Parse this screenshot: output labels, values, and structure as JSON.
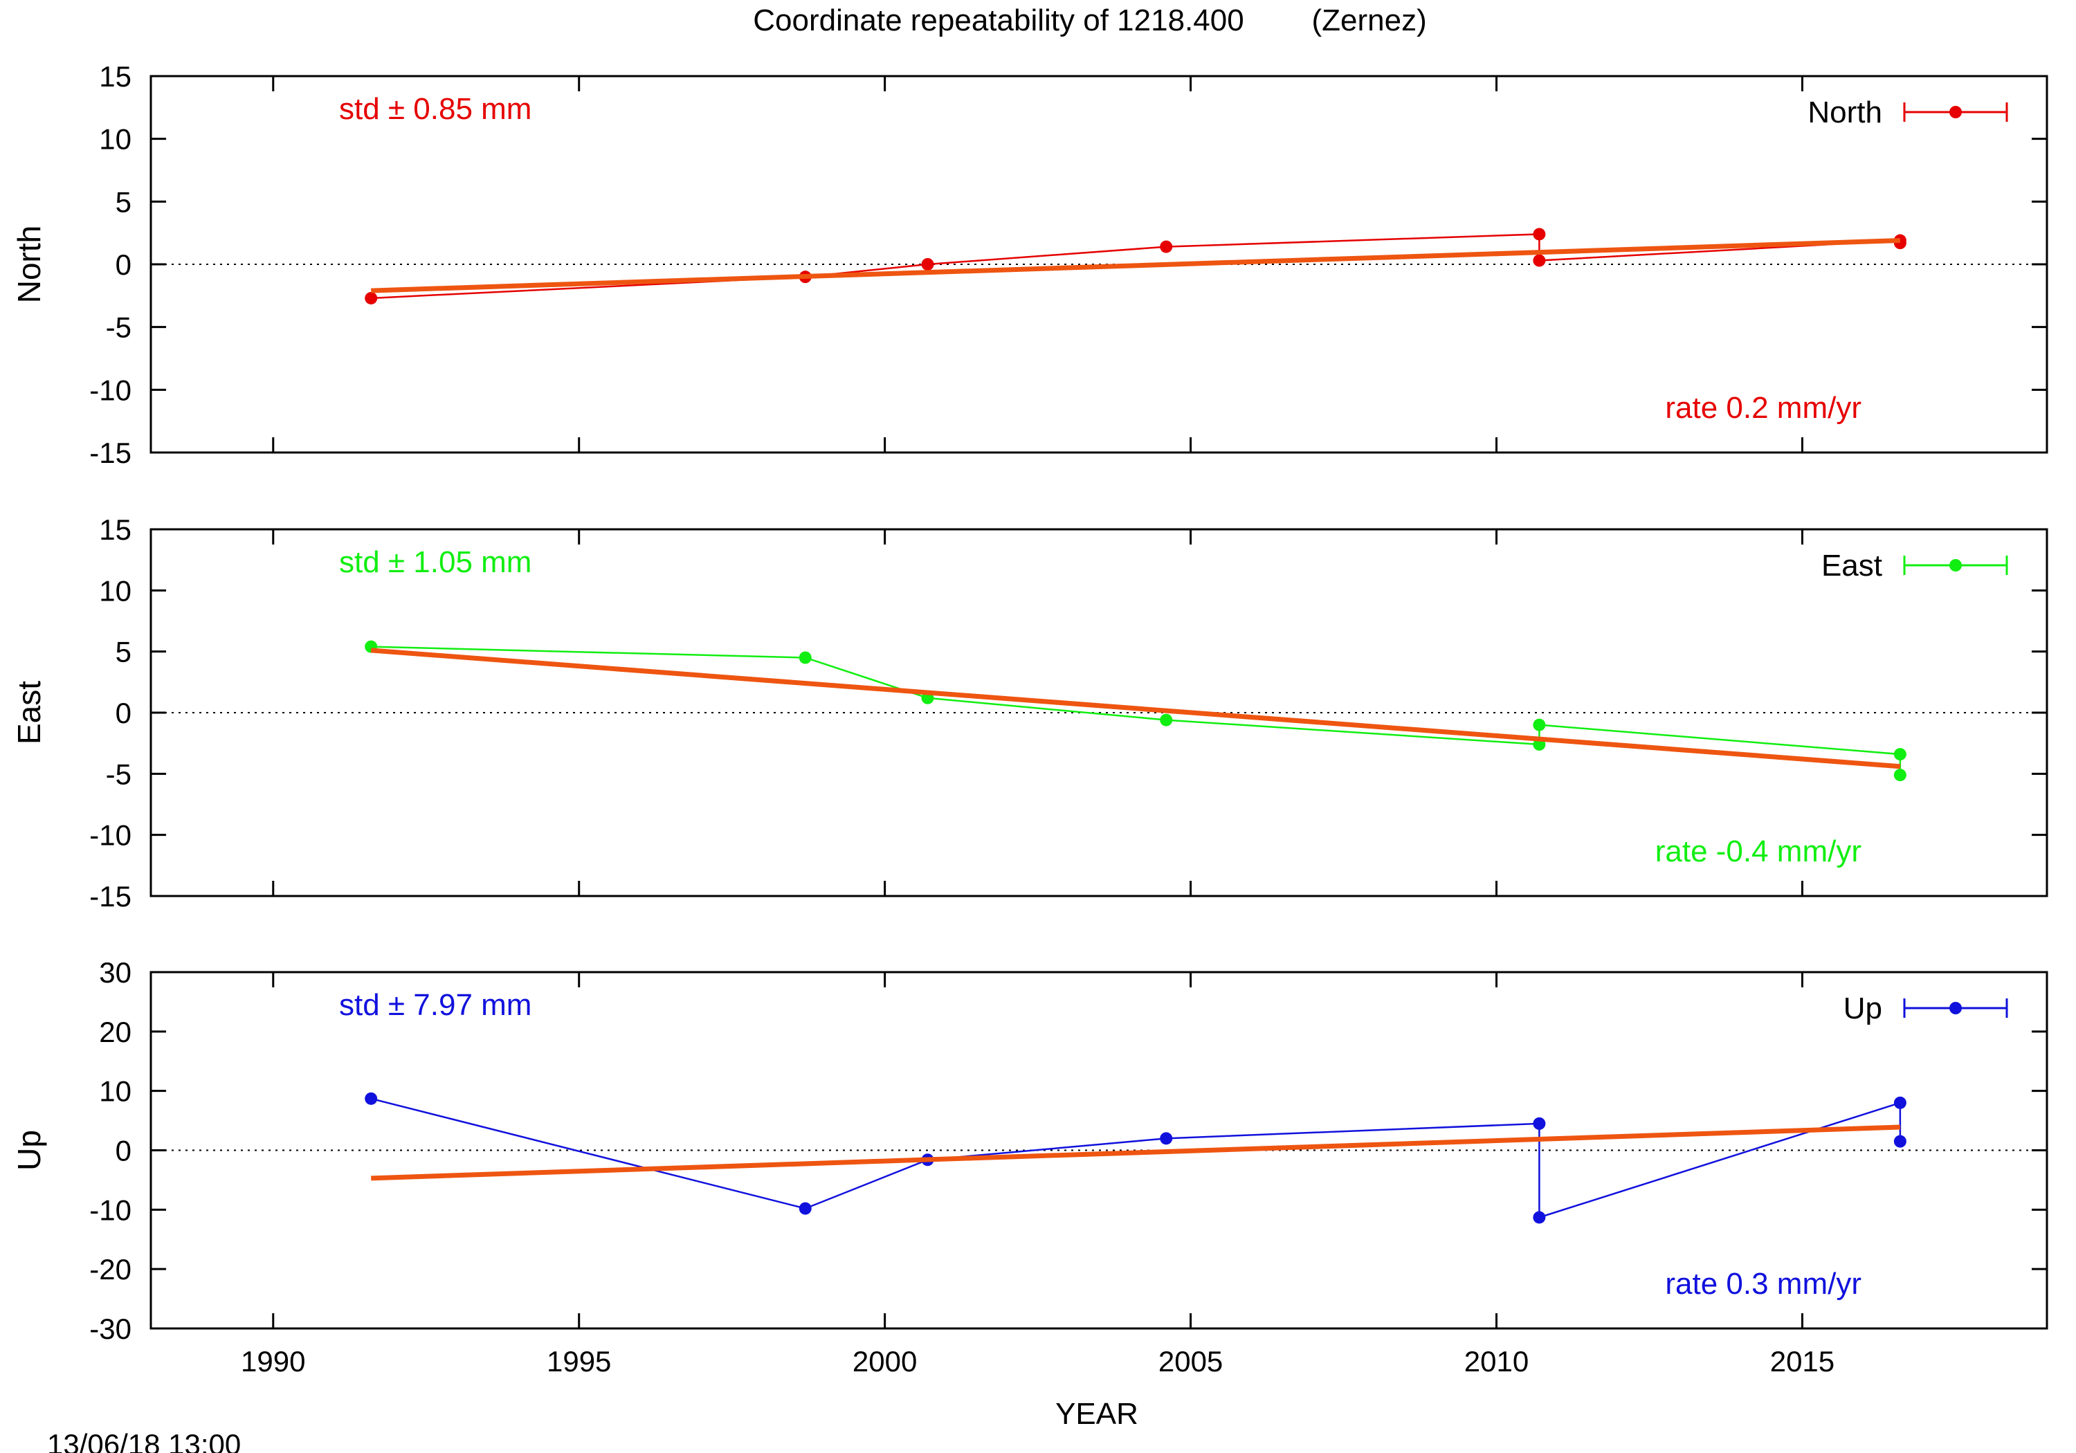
{
  "title": "Coordinate repeatability of 1218.400        (Zernez)",
  "xlabel": "YEAR",
  "footer": "13/06/18 13:00",
  "colors": {
    "trend": "#ee5511",
    "frame": "#000000",
    "zero_line": "#000000"
  },
  "chart_data": [
    {
      "type": "line",
      "panel": "North",
      "ylabel": "North",
      "color": "#e60000",
      "xlim": [
        1988,
        2019
      ],
      "ylim": [
        -15,
        15
      ],
      "yticks": [
        -15,
        -10,
        -5,
        0,
        5,
        10,
        15
      ],
      "legend": "North",
      "legend_position": "top-right",
      "std_label": "std ± 0.85 mm",
      "rate_label": "rate  0.2 mm/yr",
      "series": [
        {
          "name": "North",
          "points": [
            [
              1991.6,
              -2.7
            ],
            [
              1998.7,
              -1.0
            ],
            [
              2000.7,
              0.0
            ],
            [
              2004.6,
              1.4
            ],
            [
              2010.7,
              2.4
            ],
            [
              2010.7,
              0.3
            ],
            [
              2016.6,
              1.9
            ],
            [
              2016.6,
              1.7
            ]
          ]
        }
      ],
      "trend": {
        "x": [
          1991.6,
          2016.6
        ],
        "y": [
          -2.1,
          1.9
        ]
      }
    },
    {
      "type": "line",
      "panel": "East",
      "ylabel": "East",
      "color": "#11ee11",
      "xlim": [
        1988,
        2019
      ],
      "ylim": [
        -15,
        15
      ],
      "yticks": [
        -15,
        -10,
        -5,
        0,
        5,
        10,
        15
      ],
      "legend": "East",
      "legend_position": "top-right",
      "std_label": "std ± 1.05 mm",
      "rate_label": "rate -0.4 mm/yr",
      "series": [
        {
          "name": "East",
          "points": [
            [
              1991.6,
              5.4
            ],
            [
              1998.7,
              4.5
            ],
            [
              2000.7,
              1.2
            ],
            [
              2004.6,
              -0.6
            ],
            [
              2010.7,
              -2.6
            ],
            [
              2010.7,
              -1.0
            ],
            [
              2016.6,
              -3.4
            ],
            [
              2016.6,
              -5.1
            ]
          ]
        }
      ],
      "trend": {
        "x": [
          1991.6,
          2016.6
        ],
        "y": [
          5.1,
          -4.4
        ]
      }
    },
    {
      "type": "line",
      "panel": "Up",
      "ylabel": "Up",
      "color": "#1111dd",
      "xlim": [
        1988,
        2019
      ],
      "ylim": [
        -30,
        30
      ],
      "yticks": [
        -30,
        -20,
        -10,
        0,
        10,
        20,
        30
      ],
      "legend": "Up",
      "legend_position": "top-right",
      "std_label": "std ± 7.97 mm",
      "rate_label": "rate  0.3 mm/yr",
      "series": [
        {
          "name": "Up",
          "points": [
            [
              1991.6,
              8.7
            ],
            [
              1998.7,
              -9.8
            ],
            [
              2000.7,
              -1.6
            ],
            [
              2004.6,
              2.0
            ],
            [
              2010.7,
              4.5
            ],
            [
              2010.7,
              -11.3
            ],
            [
              2016.6,
              8.0
            ],
            [
              2016.6,
              1.5
            ]
          ]
        }
      ],
      "trend": {
        "x": [
          1991.6,
          2016.6
        ],
        "y": [
          -4.7,
          3.9
        ]
      }
    }
  ],
  "xticks": [
    1990,
    1995,
    2000,
    2005,
    2010,
    2015
  ]
}
